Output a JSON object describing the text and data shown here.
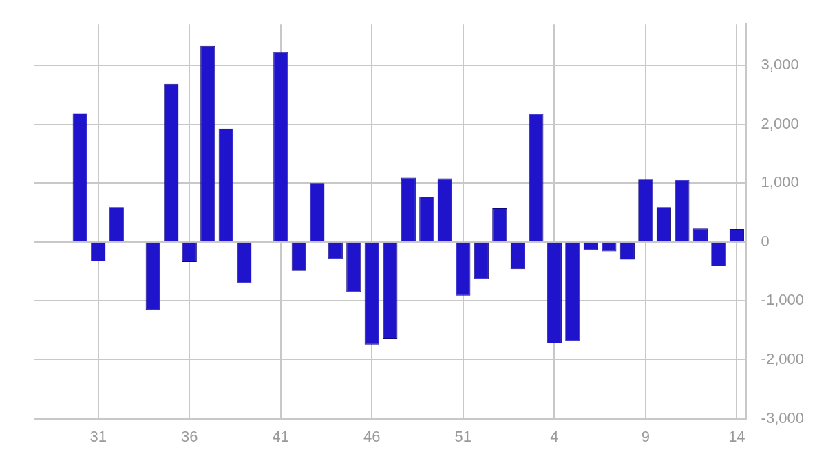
{
  "chart_data": {
    "type": "bar",
    "categories": [
      null,
      null,
      null,
      "31",
      null,
      null,
      null,
      null,
      "36",
      null,
      null,
      null,
      null,
      "41",
      null,
      null,
      null,
      null,
      "46",
      null,
      null,
      null,
      null,
      "51",
      null,
      null,
      null,
      null,
      "4",
      null,
      null,
      null,
      null,
      "9",
      null,
      null,
      null,
      null,
      "14"
    ],
    "values": [
      null,
      null,
      2190,
      -330,
      590,
      null,
      -1150,
      2690,
      -340,
      3330,
      1930,
      -700,
      null,
      3230,
      -490,
      1000,
      -290,
      -850,
      -1740,
      -1650,
      1090,
      770,
      1080,
      -910,
      -630,
      570,
      -460,
      2180,
      -1720,
      -1680,
      -140,
      -160,
      -300,
      1070,
      590,
      1060,
      230,
      -410,
      220
    ],
    "color": "#1f14cc",
    "ylim": [
      -3000,
      3700
    ],
    "yticks": [
      {
        "value": -3000,
        "label": "-3,000"
      },
      {
        "value": -2000,
        "label": "-2,000"
      },
      {
        "value": -1000,
        "label": "-1,000"
      },
      0,
      {
        "value": 1000,
        "label": "1,000"
      },
      {
        "value": 2000,
        "label": "2,000"
      },
      {
        "value": 3000,
        "label": "3,000"
      }
    ],
    "grid": true
  }
}
